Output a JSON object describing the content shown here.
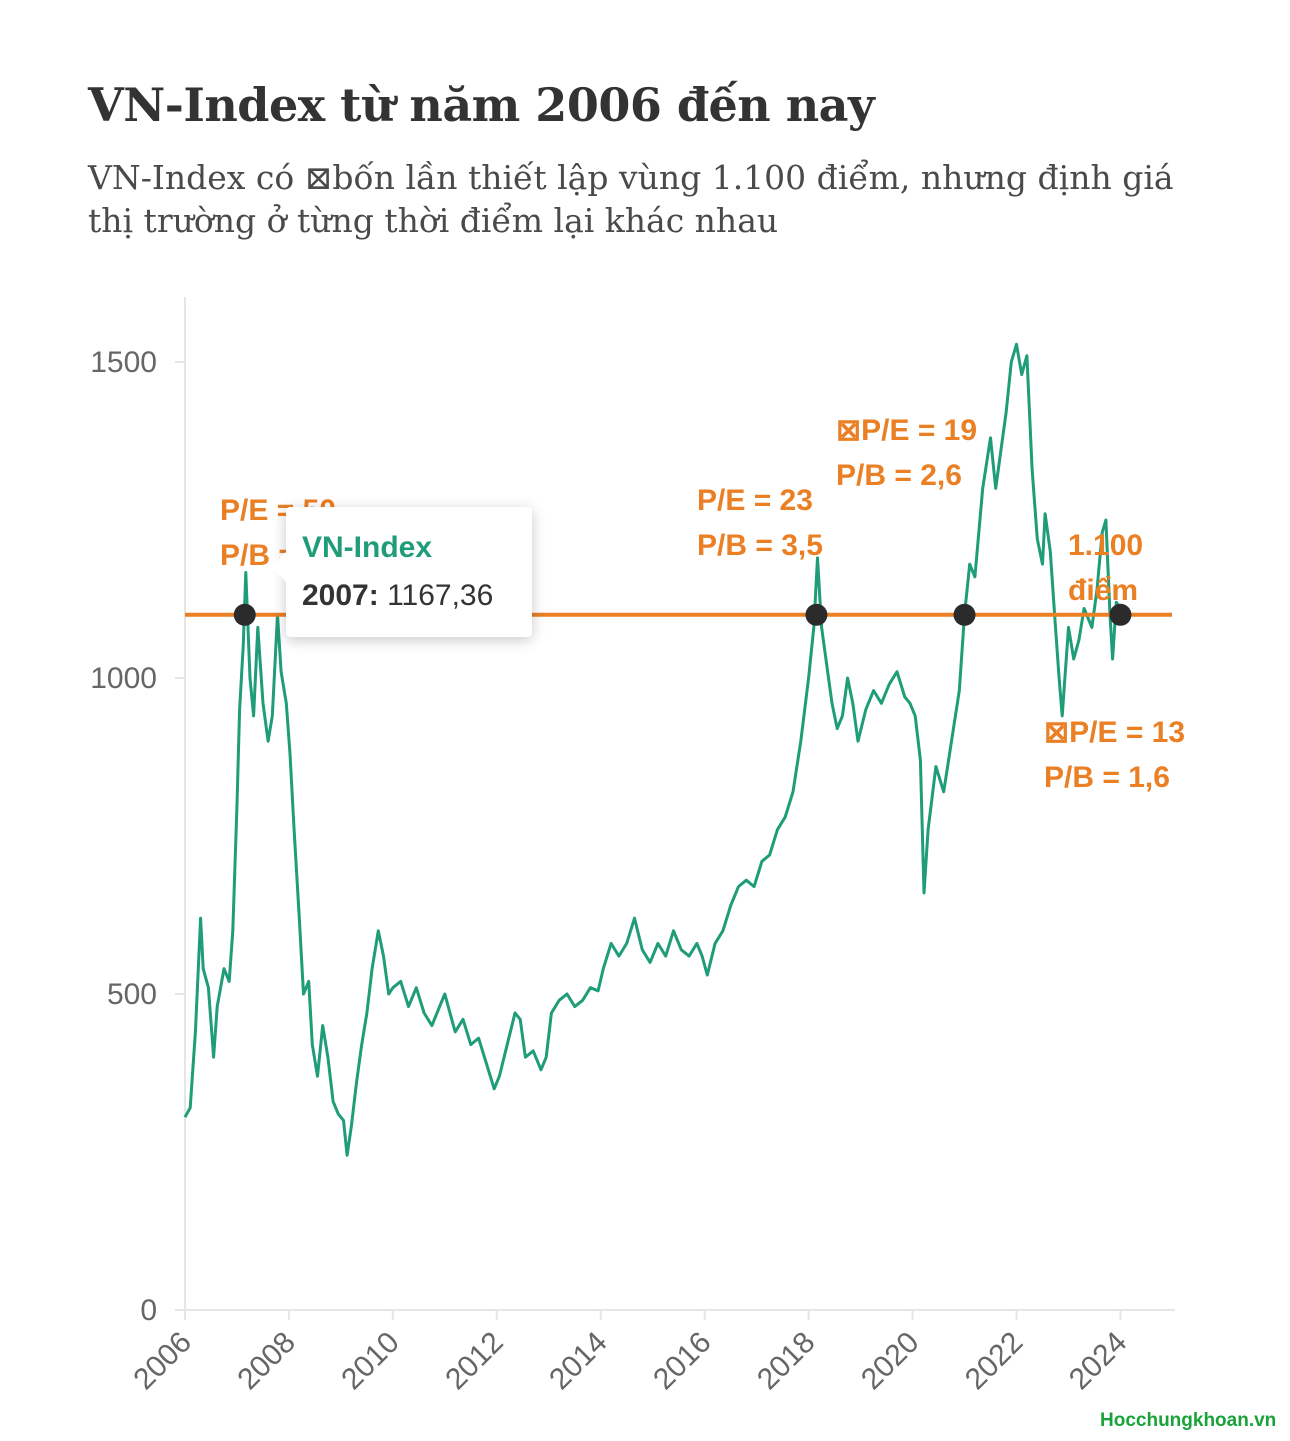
{
  "title": "VN-Index từ năm 2006 đến nay",
  "subtitle": "VN-Index có ⊠bốn lần thiết lập vùng 1.100 điểm, nhưng định giá thị trường ở từng thời điểm lại khác nhau",
  "watermark": "Hocchungkhoan.vn",
  "colors": {
    "series": "#1f9c78",
    "reference": "#ea7f24",
    "markers": "#2b2b2b",
    "axis": "#e6e6e6",
    "annotation": "#ea7f24"
  },
  "tooltip": {
    "series": "VN-Index",
    "key": "2007:",
    "value": "1167,36"
  },
  "chart_data": {
    "type": "line",
    "title": "VN-Index từ năm 2006 đến nay",
    "xlabel": "",
    "ylabel": "",
    "xlim": [
      2006,
      2025.05
    ],
    "ylim": [
      0,
      1600
    ],
    "x_ticks": [
      "2006",
      "2008",
      "2010",
      "2012",
      "2014",
      "2016",
      "2018",
      "2020",
      "2022",
      "2024"
    ],
    "y_ticks": [
      "0",
      "500",
      "1000",
      "1500"
    ],
    "grid": false,
    "reference_line": {
      "y": 1100
    },
    "markers": [
      {
        "x": 2007.15,
        "y": 1100
      },
      {
        "x": 2018.15,
        "y": 1100
      },
      {
        "x": 2021.0,
        "y": 1100
      },
      {
        "x": 2024.0,
        "y": 1100
      }
    ],
    "annotations": [
      {
        "lines": [
          "P/E = 50",
          "P/B = 7"
        ],
        "anchor": "2007"
      },
      {
        "lines": [
          "P/E = 23",
          "P/B = 3,5"
        ],
        "anchor": "2018"
      },
      {
        "lines": [
          "⊠P/E = 19",
          "P/B = 2,6"
        ],
        "anchor": "2021"
      },
      {
        "lines": [
          "1.100",
          "điểm"
        ],
        "anchor": "1100-line"
      },
      {
        "lines": [
          "⊠P/E = 13",
          "P/B = 1,6"
        ],
        "anchor": "2023"
      }
    ],
    "series": [
      {
        "name": "VN-Index",
        "points": [
          [
            2006.0,
            305
          ],
          [
            2006.1,
            320
          ],
          [
            2006.2,
            440
          ],
          [
            2006.3,
            620
          ],
          [
            2006.35,
            540
          ],
          [
            2006.45,
            510
          ],
          [
            2006.55,
            400
          ],
          [
            2006.62,
            480
          ],
          [
            2006.75,
            540
          ],
          [
            2006.85,
            520
          ],
          [
            2006.92,
            600
          ],
          [
            2007.0,
            800
          ],
          [
            2007.05,
            950
          ],
          [
            2007.12,
            1050
          ],
          [
            2007.17,
            1167
          ],
          [
            2007.25,
            1000
          ],
          [
            2007.32,
            940
          ],
          [
            2007.4,
            1080
          ],
          [
            2007.5,
            960
          ],
          [
            2007.6,
            900
          ],
          [
            2007.68,
            940
          ],
          [
            2007.78,
            1100
          ],
          [
            2007.85,
            1010
          ],
          [
            2007.95,
            960
          ],
          [
            2008.02,
            880
          ],
          [
            2008.1,
            760
          ],
          [
            2008.2,
            620
          ],
          [
            2008.28,
            500
          ],
          [
            2008.38,
            520
          ],
          [
            2008.45,
            420
          ],
          [
            2008.55,
            370
          ],
          [
            2008.65,
            450
          ],
          [
            2008.75,
            400
          ],
          [
            2008.85,
            330
          ],
          [
            2008.95,
            310
          ],
          [
            2009.05,
            300
          ],
          [
            2009.12,
            245
          ],
          [
            2009.2,
            290
          ],
          [
            2009.3,
            360
          ],
          [
            2009.4,
            420
          ],
          [
            2009.5,
            470
          ],
          [
            2009.6,
            540
          ],
          [
            2009.72,
            600
          ],
          [
            2009.82,
            560
          ],
          [
            2009.92,
            500
          ],
          [
            2010.0,
            510
          ],
          [
            2010.15,
            520
          ],
          [
            2010.3,
            480
          ],
          [
            2010.45,
            510
          ],
          [
            2010.6,
            470
          ],
          [
            2010.75,
            450
          ],
          [
            2010.9,
            480
          ],
          [
            2011.0,
            500
          ],
          [
            2011.1,
            470
          ],
          [
            2011.2,
            440
          ],
          [
            2011.35,
            460
          ],
          [
            2011.5,
            420
          ],
          [
            2011.65,
            430
          ],
          [
            2011.8,
            390
          ],
          [
            2011.95,
            350
          ],
          [
            2012.05,
            370
          ],
          [
            2012.2,
            420
          ],
          [
            2012.35,
            470
          ],
          [
            2012.45,
            460
          ],
          [
            2012.55,
            400
          ],
          [
            2012.7,
            410
          ],
          [
            2012.85,
            380
          ],
          [
            2012.95,
            400
          ],
          [
            2013.05,
            470
          ],
          [
            2013.2,
            490
          ],
          [
            2013.35,
            500
          ],
          [
            2013.5,
            480
          ],
          [
            2013.65,
            490
          ],
          [
            2013.8,
            510
          ],
          [
            2013.95,
            505
          ],
          [
            2014.05,
            540
          ],
          [
            2014.2,
            580
          ],
          [
            2014.35,
            560
          ],
          [
            2014.5,
            580
          ],
          [
            2014.65,
            620
          ],
          [
            2014.8,
            570
          ],
          [
            2014.95,
            550
          ],
          [
            2015.1,
            580
          ],
          [
            2015.25,
            560
          ],
          [
            2015.4,
            600
          ],
          [
            2015.55,
            570
          ],
          [
            2015.7,
            560
          ],
          [
            2015.85,
            580
          ],
          [
            2015.95,
            560
          ],
          [
            2016.05,
            530
          ],
          [
            2016.2,
            580
          ],
          [
            2016.35,
            600
          ],
          [
            2016.5,
            640
          ],
          [
            2016.65,
            670
          ],
          [
            2016.8,
            680
          ],
          [
            2016.95,
            670
          ],
          [
            2017.1,
            710
          ],
          [
            2017.25,
            720
          ],
          [
            2017.4,
            760
          ],
          [
            2017.55,
            780
          ],
          [
            2017.7,
            820
          ],
          [
            2017.85,
            900
          ],
          [
            2018.0,
            1000
          ],
          [
            2018.1,
            1080
          ],
          [
            2018.17,
            1190
          ],
          [
            2018.25,
            1080
          ],
          [
            2018.35,
            1020
          ],
          [
            2018.45,
            960
          ],
          [
            2018.55,
            920
          ],
          [
            2018.65,
            940
          ],
          [
            2018.75,
            1000
          ],
          [
            2018.85,
            960
          ],
          [
            2018.95,
            900
          ],
          [
            2019.1,
            950
          ],
          [
            2019.25,
            980
          ],
          [
            2019.4,
            960
          ],
          [
            2019.55,
            990
          ],
          [
            2019.7,
            1010
          ],
          [
            2019.85,
            970
          ],
          [
            2019.95,
            960
          ],
          [
            2020.05,
            940
          ],
          [
            2020.15,
            870
          ],
          [
            2020.22,
            660
          ],
          [
            2020.3,
            760
          ],
          [
            2020.45,
            860
          ],
          [
            2020.6,
            820
          ],
          [
            2020.75,
            900
          ],
          [
            2020.9,
            980
          ],
          [
            2021.0,
            1100
          ],
          [
            2021.1,
            1180
          ],
          [
            2021.2,
            1160
          ],
          [
            2021.35,
            1300
          ],
          [
            2021.5,
            1380
          ],
          [
            2021.6,
            1300
          ],
          [
            2021.7,
            1360
          ],
          [
            2021.8,
            1420
          ],
          [
            2021.9,
            1500
          ],
          [
            2022.0,
            1528
          ],
          [
            2022.1,
            1480
          ],
          [
            2022.2,
            1510
          ],
          [
            2022.3,
            1330
          ],
          [
            2022.4,
            1220
          ],
          [
            2022.5,
            1180
          ],
          [
            2022.55,
            1260
          ],
          [
            2022.65,
            1200
          ],
          [
            2022.75,
            1080
          ],
          [
            2022.82,
            1000
          ],
          [
            2022.88,
            940
          ],
          [
            2023.0,
            1080
          ],
          [
            2023.1,
            1030
          ],
          [
            2023.2,
            1060
          ],
          [
            2023.3,
            1110
          ],
          [
            2023.45,
            1080
          ],
          [
            2023.55,
            1140
          ],
          [
            2023.65,
            1230
          ],
          [
            2023.72,
            1250
          ],
          [
            2023.8,
            1100
          ],
          [
            2023.85,
            1030
          ],
          [
            2023.92,
            1120
          ],
          [
            2024.0,
            1110
          ]
        ]
      }
    ]
  }
}
